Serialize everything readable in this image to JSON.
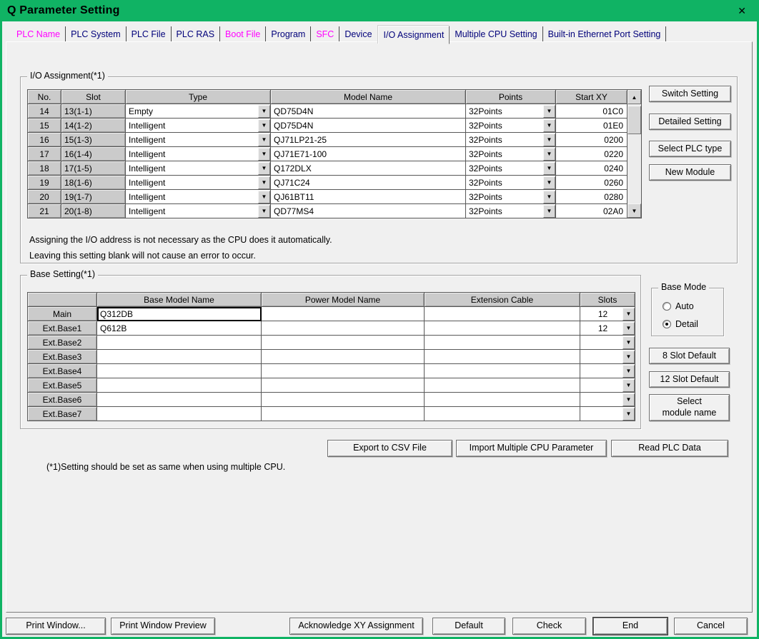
{
  "window": {
    "title": "Q Parameter Setting",
    "close_glyph": "✕"
  },
  "icons": {
    "dropdown": "▼",
    "scroll_up": "▲",
    "scroll_down": "▼"
  },
  "colors": {
    "titlebar_green": "#10b364",
    "tab_magenta": "#ff00ff",
    "tab_navy": "#00007a"
  },
  "tabs": [
    {
      "label": "PLC Name",
      "color": "magenta",
      "active": false
    },
    {
      "label": "PLC System",
      "color": "navy",
      "active": false
    },
    {
      "label": "PLC File",
      "color": "navy",
      "active": false
    },
    {
      "label": "PLC RAS",
      "color": "navy",
      "active": false
    },
    {
      "label": "Boot File",
      "color": "magenta",
      "active": false
    },
    {
      "label": "Program",
      "color": "navy",
      "active": false
    },
    {
      "label": "SFC",
      "color": "magenta",
      "active": false
    },
    {
      "label": "Device",
      "color": "navy",
      "active": false
    },
    {
      "label": "I/O Assignment",
      "color": "navy",
      "active": true
    },
    {
      "label": "Multiple CPU Setting",
      "color": "navy",
      "active": false
    },
    {
      "label": "Built-in Ethernet Port Setting",
      "color": "navy",
      "active": false
    }
  ],
  "io_assignment": {
    "group_title": "I/O Assignment(*1)",
    "columns": [
      "No.",
      "Slot",
      "Type",
      "Model Name",
      "Points",
      "Start XY"
    ],
    "rows": [
      {
        "no": "14",
        "slot": "13(1-1)",
        "type": "Empty",
        "model": "QD75D4N",
        "points": "32Points",
        "start_xy": "01C0"
      },
      {
        "no": "15",
        "slot": "14(1-2)",
        "type": "Intelligent",
        "model": "QD75D4N",
        "points": "32Points",
        "start_xy": "01E0"
      },
      {
        "no": "16",
        "slot": "15(1-3)",
        "type": "Intelligent",
        "model": "QJ71LP21-25",
        "points": "32Points",
        "start_xy": "0200"
      },
      {
        "no": "17",
        "slot": "16(1-4)",
        "type": "Intelligent",
        "model": "QJ71E71-100",
        "points": "32Points",
        "start_xy": "0220"
      },
      {
        "no": "18",
        "slot": "17(1-5)",
        "type": "Intelligent",
        "model": "Q172DLX",
        "points": "32Points",
        "start_xy": "0240"
      },
      {
        "no": "19",
        "slot": "18(1-6)",
        "type": "Intelligent",
        "model": "QJ71C24",
        "points": "32Points",
        "start_xy": "0260"
      },
      {
        "no": "20",
        "slot": "19(1-7)",
        "type": "Intelligent",
        "model": "QJ61BT11",
        "points": "32Points",
        "start_xy": "0280"
      },
      {
        "no": "21",
        "slot": "20(1-8)",
        "type": "Intelligent",
        "model": "QD77MS4",
        "points": "32Points",
        "start_xy": "02A0"
      }
    ],
    "side_buttons": [
      "Switch Setting",
      "Detailed Setting",
      "Select PLC type",
      "New Module"
    ],
    "notes": [
      "Assigning the I/O address is not necessary as the CPU does it automatically.",
      "Leaving this setting blank will not cause an error to occur."
    ]
  },
  "base_setting": {
    "group_title": "Base Setting(*1)",
    "columns": [
      "",
      "Base Model Name",
      "Power Model Name",
      "Extension Cable",
      "Slots"
    ],
    "rows": [
      {
        "label": "Main",
        "base_model": "Q312DB",
        "power_model": "",
        "ext_cable": "",
        "slots": "12",
        "focused": true
      },
      {
        "label": "Ext.Base1",
        "base_model": "Q612B",
        "power_model": "",
        "ext_cable": "",
        "slots": "12",
        "focused": false
      },
      {
        "label": "Ext.Base2",
        "base_model": "",
        "power_model": "",
        "ext_cable": "",
        "slots": "",
        "focused": false
      },
      {
        "label": "Ext.Base3",
        "base_model": "",
        "power_model": "",
        "ext_cable": "",
        "slots": "",
        "focused": false
      },
      {
        "label": "Ext.Base4",
        "base_model": "",
        "power_model": "",
        "ext_cable": "",
        "slots": "",
        "focused": false
      },
      {
        "label": "Ext.Base5",
        "base_model": "",
        "power_model": "",
        "ext_cable": "",
        "slots": "",
        "focused": false
      },
      {
        "label": "Ext.Base6",
        "base_model": "",
        "power_model": "",
        "ext_cable": "",
        "slots": "",
        "focused": false
      },
      {
        "label": "Ext.Base7",
        "base_model": "",
        "power_model": "",
        "ext_cable": "",
        "slots": "",
        "focused": false
      }
    ],
    "base_mode": {
      "title": "Base Mode",
      "options": [
        {
          "label": "Auto",
          "selected": false
        },
        {
          "label": "Detail",
          "selected": true
        }
      ]
    },
    "side_buttons": [
      "8 Slot Default",
      "12 Slot Default",
      "Select\nmodule name"
    ]
  },
  "middle_buttons": [
    "Export to CSV File",
    "Import Multiple CPU Parameter",
    "Read PLC Data"
  ],
  "footnote": "(*1)Setting should be set as same when using multiple CPU.",
  "bottom_buttons": [
    {
      "label": "Print Window...",
      "default": false
    },
    {
      "label": "Print Window Preview",
      "default": false
    },
    {
      "label": "Acknowledge XY Assignment",
      "default": false
    },
    {
      "label": "Default",
      "default": false
    },
    {
      "label": "Check",
      "default": false
    },
    {
      "label": "End",
      "default": true
    },
    {
      "label": "Cancel",
      "default": false
    }
  ]
}
